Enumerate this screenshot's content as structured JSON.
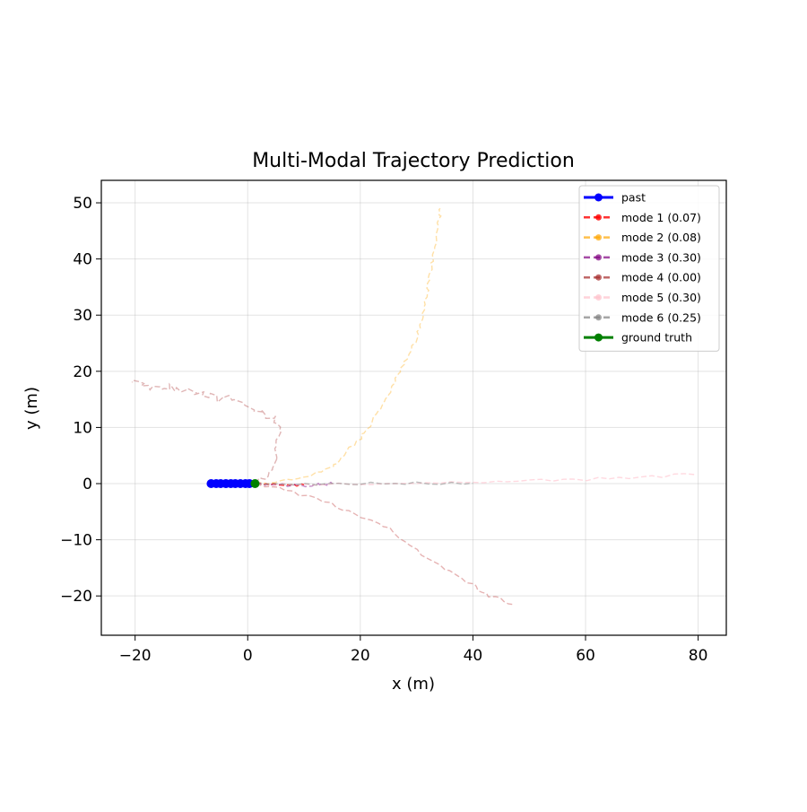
{
  "chart_data": {
    "type": "line",
    "title": "Multi-Modal Trajectory Prediction",
    "xlabel": "x (m)",
    "ylabel": "y (m)",
    "xlim": [
      -26,
      85
    ],
    "ylim": [
      -27,
      54
    ],
    "xticks": [
      -20,
      0,
      20,
      40,
      60,
      80
    ],
    "yticks": [
      -20,
      -10,
      0,
      10,
      20,
      30,
      40,
      50
    ],
    "xtick_labels": [
      "−20",
      "0",
      "20",
      "40",
      "60",
      "80"
    ],
    "ytick_labels": [
      "−20",
      "−10",
      "0",
      "10",
      "20",
      "30",
      "40",
      "50"
    ],
    "grid": true,
    "legend_position": "top-right",
    "series": [
      {
        "name": "past",
        "color": "#0000ff",
        "style": "solid",
        "markers": true,
        "alpha": 1,
        "points": [
          [
            -6.5,
            0
          ],
          [
            -5.6,
            0
          ],
          [
            -4.8,
            0
          ],
          [
            -3.9,
            0
          ],
          [
            -3.0,
            0
          ],
          [
            -2.2,
            0
          ],
          [
            -1.3,
            0
          ],
          [
            -0.4,
            0
          ],
          [
            0.3,
            0
          ]
        ]
      },
      {
        "name": "mode 1 (0.07)",
        "color": "#ff0000",
        "style": "dashed",
        "markers": false,
        "alpha": 0.8,
        "points": [
          [
            1.5,
            0
          ],
          [
            4,
            -0.1
          ],
          [
            7,
            -0.2
          ],
          [
            10,
            -0.2
          ]
        ]
      },
      {
        "name": "mode 2 (0.08)",
        "color": "#ffa500",
        "style": "dashed",
        "markers": false,
        "alpha": 0.35,
        "points": [
          [
            1.5,
            0
          ],
          [
            5,
            0.3
          ],
          [
            10,
            1.2
          ],
          [
            15,
            3
          ],
          [
            17,
            5
          ],
          [
            20,
            8
          ],
          [
            22,
            11
          ],
          [
            24,
            14
          ],
          [
            25.5,
            17
          ],
          [
            27,
            20
          ],
          [
            28.5,
            23
          ],
          [
            30,
            26
          ],
          [
            30.8,
            29
          ],
          [
            31.5,
            32
          ],
          [
            32,
            35
          ],
          [
            32.5,
            38
          ],
          [
            33,
            41
          ],
          [
            33.5,
            44
          ],
          [
            34,
            47
          ],
          [
            34.2,
            49
          ]
        ]
      },
      {
        "name": "mode 3 (0.30)",
        "color": "#800080",
        "style": "dashed",
        "markers": false,
        "alpha": 0.45,
        "points": [
          [
            1.5,
            0
          ],
          [
            5,
            -0.2
          ],
          [
            8,
            -0.3
          ],
          [
            11,
            -0.3
          ],
          [
            13,
            -0.2
          ],
          [
            15,
            0
          ]
        ]
      },
      {
        "name": "mode 4 (0.00)",
        "color": "#a52a2a",
        "style": "dashed",
        "markers": false,
        "alpha": 0.35,
        "points": [
          [
            1.5,
            0
          ],
          [
            4,
            2
          ],
          [
            5,
            5
          ],
          [
            5.5,
            8
          ],
          [
            5,
            11
          ],
          [
            3,
            13
          ],
          [
            0,
            14
          ],
          [
            -3,
            15
          ],
          [
            -6,
            15.2
          ],
          [
            -9,
            16
          ],
          [
            -12,
            17
          ],
          [
            -15,
            17.5
          ],
          [
            -18,
            17
          ],
          [
            -20.5,
            18
          ]
        ]
      },
      {
        "name": "mode 5 (0.30)",
        "color": "#ffc0cb",
        "style": "dashed",
        "markers": false,
        "alpha": 0.6,
        "points": [
          [
            1.5,
            0
          ],
          [
            10,
            -0.2
          ],
          [
            20,
            0
          ],
          [
            30,
            0.1
          ],
          [
            40,
            0.3
          ],
          [
            50,
            0.5
          ],
          [
            60,
            0.8
          ],
          [
            70,
            1.2
          ],
          [
            79.5,
            1.6
          ]
        ]
      },
      {
        "name": "mode 6 (0.25)",
        "color": "#808080",
        "style": "dashed",
        "markers": false,
        "alpha": 0.5,
        "points": [
          [
            1.5,
            0
          ],
          [
            10,
            -0.1
          ],
          [
            20,
            0
          ],
          [
            30,
            0.1
          ],
          [
            40,
            0.1
          ]
        ]
      },
      {
        "name": "ground truth",
        "color": "#008000",
        "style": "solid",
        "markers": true,
        "alpha": 1,
        "points": [
          [
            1.3,
            0
          ]
        ]
      }
    ],
    "extra_tracks": [
      {
        "color": "#c04040",
        "style": "dashed",
        "alpha": 0.4,
        "points": [
          [
            1.5,
            0
          ],
          [
            8,
            -1.5
          ],
          [
            15,
            -3.5
          ],
          [
            20,
            -6
          ],
          [
            25,
            -8
          ],
          [
            30,
            -12
          ],
          [
            35,
            -15
          ],
          [
            40,
            -18
          ],
          [
            43,
            -20
          ],
          [
            47,
            -21.5
          ]
        ]
      }
    ]
  }
}
